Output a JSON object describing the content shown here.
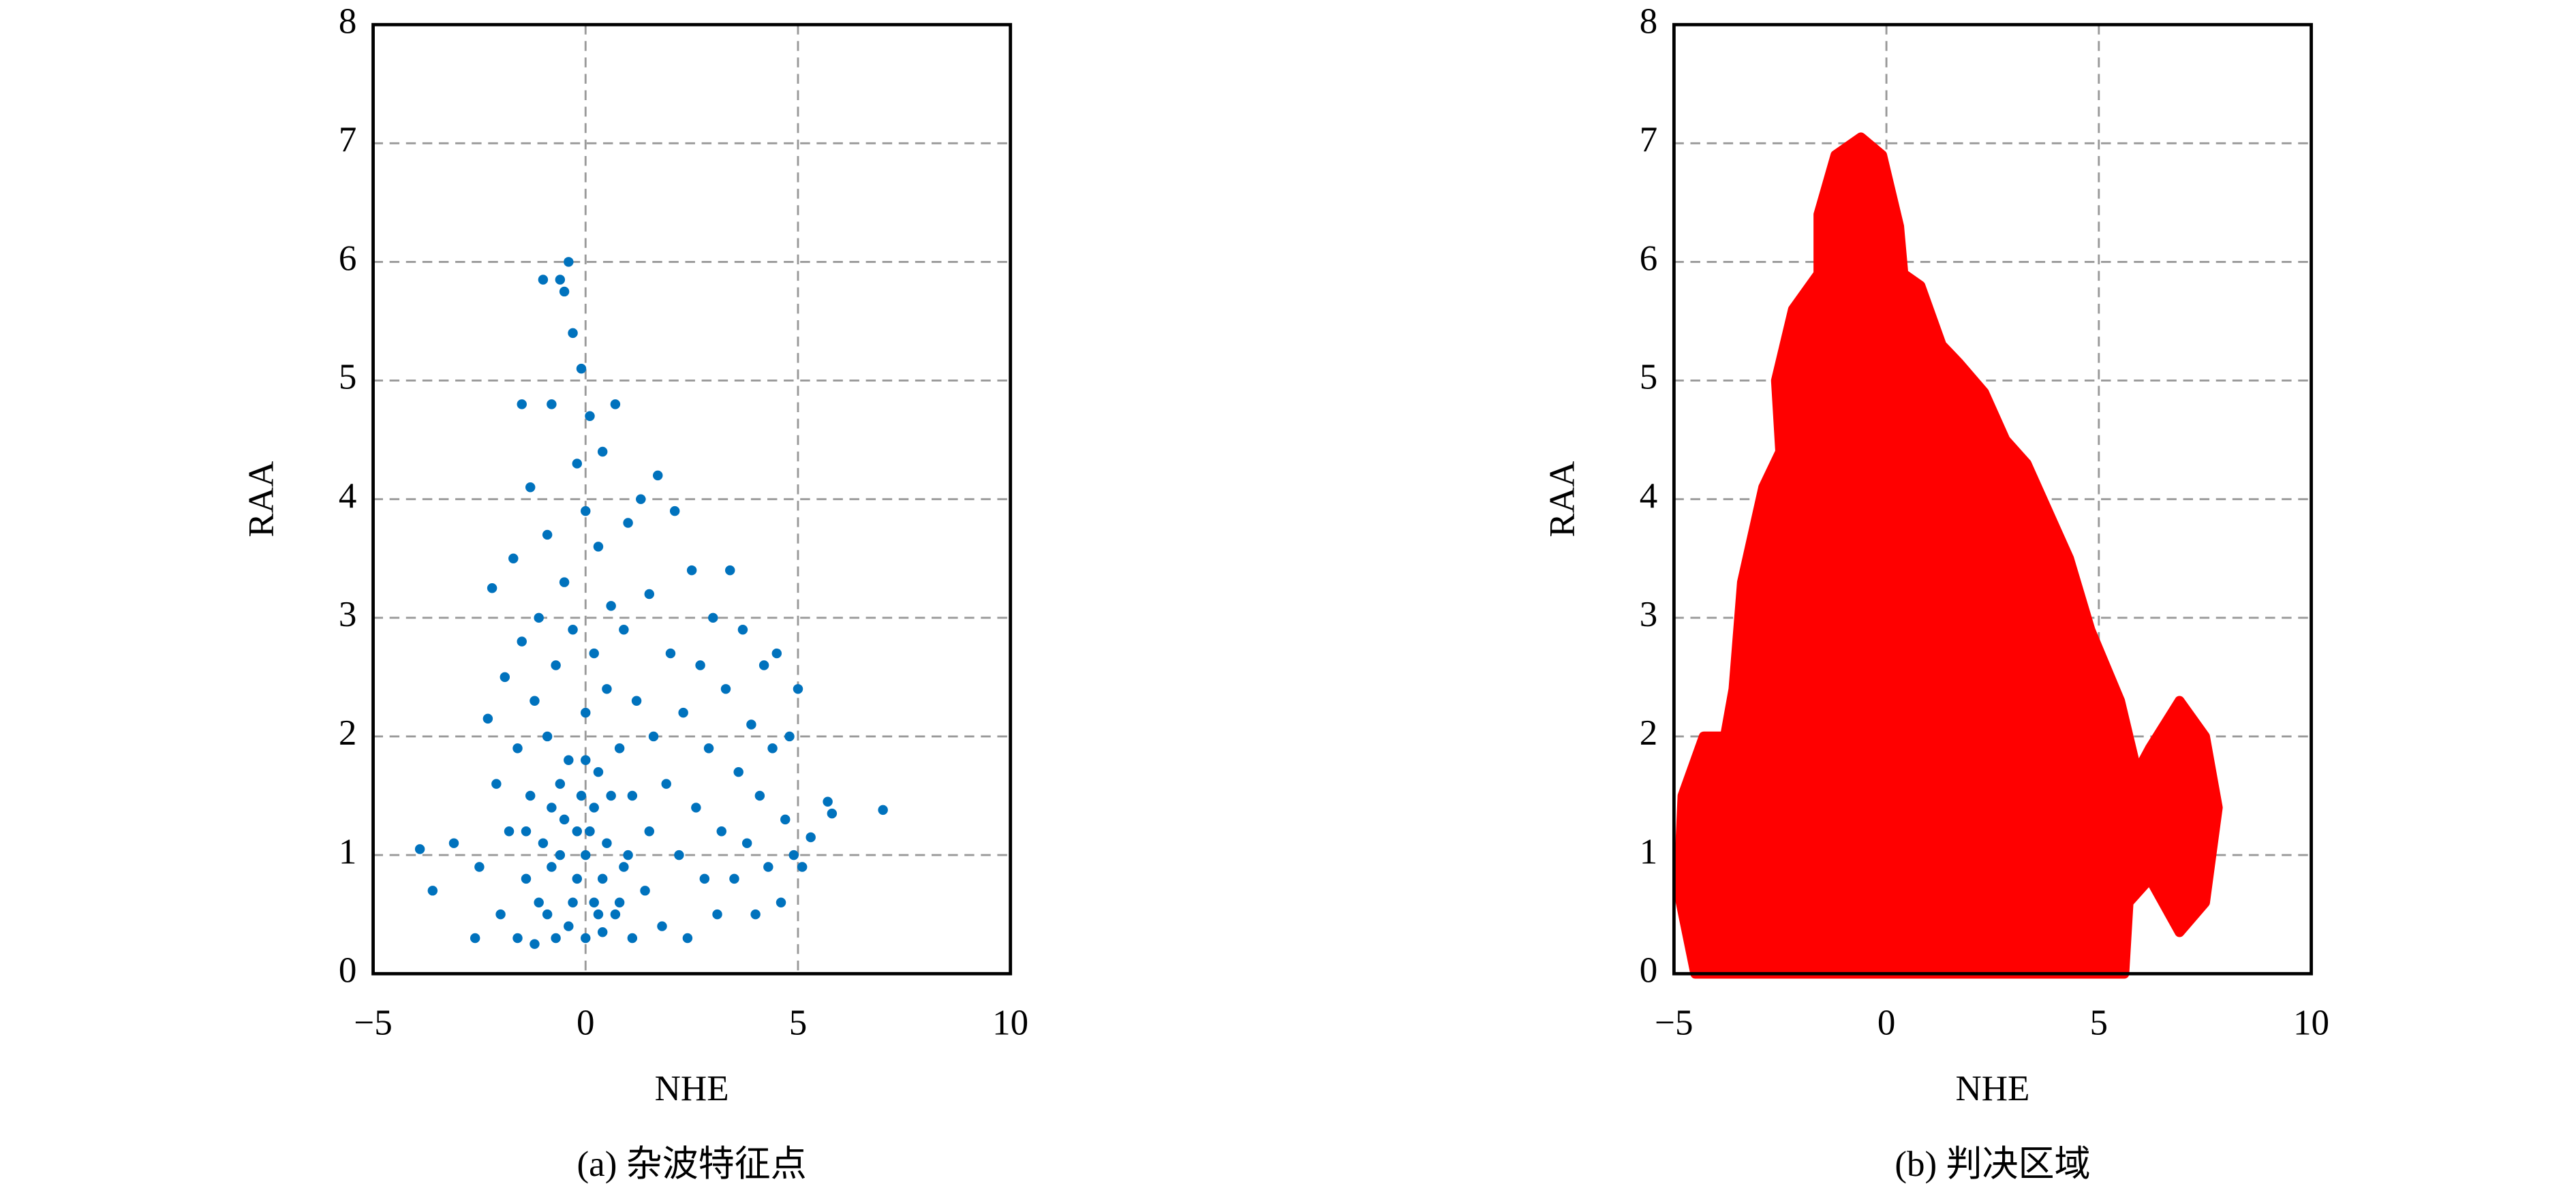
{
  "chart_data": [
    {
      "type": "scatter",
      "xlabel": "NHE",
      "ylabel": "RAA",
      "caption": "(a) 杂波特征点",
      "color": "#0072bd",
      "grid": true,
      "xlim": [
        -5,
        10
      ],
      "ylim": [
        0,
        8
      ],
      "xticks": [
        {
          "value": -5,
          "label": "−5"
        },
        0,
        5,
        10
      ],
      "yticks": [
        0,
        1,
        2,
        3,
        4,
        5,
        6,
        7,
        8
      ],
      "x": [
        -3.9,
        -3.6,
        -3.1,
        -2.6,
        -2.5,
        -2.3,
        -2.2,
        -2.1,
        -2.0,
        -1.9,
        -1.8,
        -1.7,
        -1.6,
        -1.6,
        -1.5,
        -1.5,
        -1.4,
        -1.3,
        -1.3,
        -1.2,
        -1.2,
        -1.1,
        -1.0,
        -1.0,
        -0.9,
        -0.9,
        -0.9,
        -0.8,
        -0.8,
        -0.7,
        -0.7,
        -0.6,
        -0.6,
        -0.5,
        -0.5,
        -0.4,
        -0.4,
        -0.4,
        -0.3,
        -0.3,
        -0.2,
        -0.2,
        -0.1,
        -0.1,
        0,
        0,
        0,
        0.1,
        0.1,
        0.2,
        0.2,
        0.3,
        0.3,
        0.4,
        0.4,
        0.5,
        0.5,
        0.6,
        0.7,
        0.7,
        0.8,
        0.9,
        0.9,
        1.0,
        1.1,
        1.1,
        1.2,
        1.3,
        1.4,
        1.5,
        1.5,
        1.6,
        1.7,
        1.8,
        1.9,
        2.0,
        2.1,
        2.2,
        2.3,
        2.4,
        2.5,
        2.6,
        2.7,
        2.8,
        2.9,
        3.0,
        3.1,
        3.2,
        3.3,
        3.4,
        3.5,
        3.6,
        3.7,
        3.8,
        3.9,
        4.0,
        4.1,
        4.2,
        4.3,
        4.4,
        4.5,
        4.6,
        4.7,
        4.8,
        4.9,
        5.0,
        5.1,
        5.3,
        5.7,
        5.8,
        7.0,
        -0.8,
        -0.5,
        -0.3,
        0,
        0.2,
        0.4,
        -1.1,
        0.6,
        -0.6,
        0.8,
        0,
        -0.2,
        0.3,
        1.0,
        -1.4
      ],
      "values": [
        1.05,
        0.7,
        1.1,
        0.3,
        0.9,
        2.15,
        3.25,
        1.6,
        0.5,
        2.5,
        1.2,
        3.5,
        0.3,
        1.9,
        2.8,
        4.8,
        0.8,
        1.5,
        4.1,
        2.3,
        0.25,
        3.0,
        1.1,
        5.85,
        0.5,
        2.0,
        3.7,
        1.4,
        4.8,
        0.3,
        2.6,
        5.85,
        1.0,
        3.3,
        5.75,
        0.4,
        1.8,
        6.0,
        2.9,
        5.4,
        0.8,
        4.3,
        1.5,
        5.1,
        0.3,
        2.2,
        3.9,
        1.2,
        4.7,
        0.6,
        2.7,
        1.7,
        3.6,
        0.35,
        4.4,
        1.1,
        2.4,
        3.1,
        0.5,
        4.8,
        1.9,
        0.9,
        2.9,
        3.8,
        0.3,
        1.5,
        2.3,
        4.0,
        0.7,
        1.2,
        3.2,
        2.0,
        4.2,
        0.4,
        1.6,
        2.7,
        3.9,
        1.0,
        2.2,
        0.3,
        3.4,
        1.4,
        2.6,
        0.8,
        1.9,
        3.0,
        0.5,
        1.2,
        2.4,
        3.4,
        0.8,
        1.7,
        2.9,
        1.1,
        2.1,
        0.5,
        1.5,
        2.6,
        0.9,
        1.9,
        2.7,
        0.6,
        1.3,
        2.0,
        1.0,
        2.4,
        0.9,
        1.15,
        1.45,
        1.35,
        1.38,
        0.9,
        1.3,
        0.6,
        1.0,
        1.4,
        0.8,
        0.6,
        1.5,
        1.6,
        0.6,
        1.8,
        1.2,
        0.5,
        1.0,
        1.2
      ]
    },
    {
      "type": "area",
      "xlabel": "NHE",
      "ylabel": "RAA",
      "caption": "(b) 判决区域",
      "color": "#ff0000",
      "grid": true,
      "xlim": [
        -5,
        10
      ],
      "ylim": [
        0,
        8
      ],
      "xticks": [
        {
          "value": -5,
          "label": "−5"
        },
        0,
        5,
        10
      ],
      "yticks": [
        0,
        1,
        2,
        3,
        4,
        5,
        6,
        7,
        8
      ],
      "x": [
        -4.5,
        -4.9,
        -4.8,
        -4.3,
        -3.8,
        -3.6,
        -3.4,
        -2.9,
        -2.5,
        -2.6,
        -2.2,
        -1.6,
        -1.6,
        -1.2,
        -0.6,
        -0.1,
        0.3,
        0.4,
        0.8,
        1.3,
        1.7,
        2.3,
        2.8,
        3.3,
        3.8,
        4.3,
        4.8,
        5.5,
        5.9,
        6.2,
        6.9,
        7.5,
        7.8,
        7.5,
        6.9,
        6.2,
        5.7,
        5.6
      ],
      "values": [
        0,
        0.7,
        1.5,
        2.0,
        2.0,
        2.4,
        3.3,
        4.1,
        4.4,
        5.0,
        5.6,
        5.9,
        6.4,
        6.9,
        7.05,
        6.9,
        6.3,
        5.9,
        5.8,
        5.3,
        5.15,
        4.9,
        4.5,
        4.3,
        3.9,
        3.5,
        2.9,
        2.3,
        1.7,
        1.9,
        2.3,
        2.0,
        1.4,
        0.6,
        0.35,
        0.8,
        0.6,
        0
      ]
    }
  ]
}
